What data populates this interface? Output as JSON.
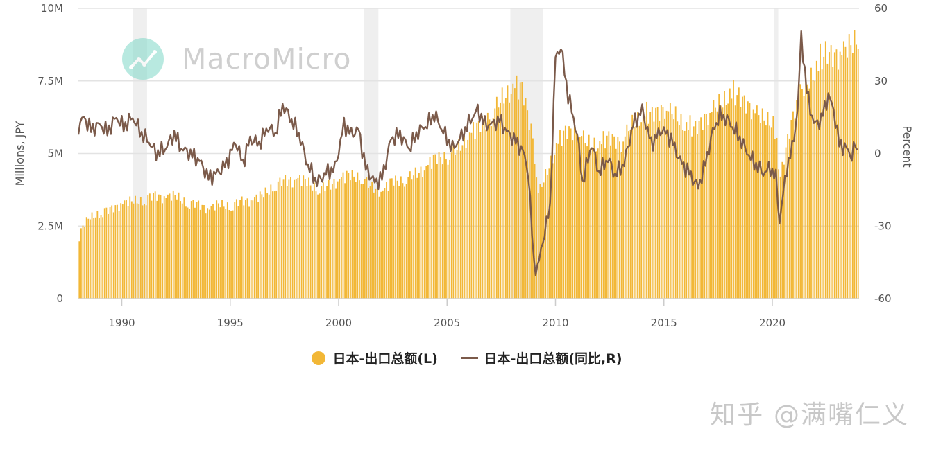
{
  "chart_data": {
    "type": "bar+line",
    "left_axis": {
      "label": "Millions, JPY",
      "ticks": [
        "0",
        "2.5M",
        "5M",
        "7.5M",
        "10M"
      ],
      "range": [
        0,
        10000000
      ]
    },
    "right_axis": {
      "label": "Percent",
      "ticks": [
        "-60",
        "-30",
        "0",
        "30",
        "60"
      ],
      "range": [
        -60,
        60
      ]
    },
    "x_axis": {
      "ticks": [
        "1990",
        "1995",
        "2000",
        "2005",
        "2010",
        "2015",
        "2020"
      ],
      "range": [
        "1988-01",
        "2024-01"
      ]
    },
    "recession_bands": [
      [
        "1990-07",
        "1991-03"
      ],
      [
        "2001-03",
        "2001-11"
      ],
      [
        "2007-12",
        "2009-06"
      ],
      [
        "2020-02",
        "2020-04"
      ]
    ],
    "series": [
      {
        "name": "日本-出口总额(L)",
        "type": "bar",
        "axis": "left",
        "color": "#F2B736",
        "points": [
          [
            "1988-01",
            2200000.0
          ],
          [
            "1988-06",
            2800000.0
          ],
          [
            "1989-01",
            2900000.0
          ],
          [
            "1989-06",
            3100000.0
          ],
          [
            "1990-01",
            3200000.0
          ],
          [
            "1990-06",
            3400000.0
          ],
          [
            "1991-01",
            3300000.0
          ],
          [
            "1991-06",
            3600000.0
          ],
          [
            "1992-01",
            3400000.0
          ],
          [
            "1992-06",
            3600000.0
          ],
          [
            "1993-01",
            3200000.0
          ],
          [
            "1993-06",
            3300000.0
          ],
          [
            "1994-01",
            3000000.0
          ],
          [
            "1994-06",
            3300000.0
          ],
          [
            "1995-01",
            3100000.0
          ],
          [
            "1995-06",
            3400000.0
          ],
          [
            "1996-01",
            3300000.0
          ],
          [
            "1996-06",
            3600000.0
          ],
          [
            "1997-01",
            3800000.0
          ],
          [
            "1997-06",
            4100000.0
          ],
          [
            "1998-01",
            4000000.0
          ],
          [
            "1998-06",
            4100000.0
          ],
          [
            "1999-01",
            3700000.0
          ],
          [
            "1999-06",
            3900000.0
          ],
          [
            "2000-01",
            4000000.0
          ],
          [
            "2000-06",
            4300000.0
          ],
          [
            "2001-01",
            4100000.0
          ],
          [
            "2001-06",
            3900000.0
          ],
          [
            "2002-01",
            3600000.0
          ],
          [
            "2002-06",
            4100000.0
          ],
          [
            "2003-01",
            4000000.0
          ],
          [
            "2003-06",
            4300000.0
          ],
          [
            "2004-01",
            4400000.0
          ],
          [
            "2004-06",
            4900000.0
          ],
          [
            "2005-01",
            4800000.0
          ],
          [
            "2005-06",
            5200000.0
          ],
          [
            "2006-01",
            5500000.0
          ],
          [
            "2006-06",
            6000000.0
          ],
          [
            "2007-01",
            6200000.0
          ],
          [
            "2007-06",
            6900000.0
          ],
          [
            "2008-01",
            7100000.0
          ],
          [
            "2008-06",
            7300000.0
          ],
          [
            "2008-12",
            5500000.0
          ],
          [
            "2009-03",
            3600000.0
          ],
          [
            "2009-06",
            4100000.0
          ],
          [
            "2009-12",
            5000000.0
          ],
          [
            "2010-06",
            5800000.0
          ],
          [
            "2011-01",
            5700000.0
          ],
          [
            "2011-06",
            5400000.0
          ],
          [
            "2012-01",
            5200000.0
          ],
          [
            "2012-06",
            5600000.0
          ],
          [
            "2013-01",
            5300000.0
          ],
          [
            "2013-06",
            6000000.0
          ],
          [
            "2014-01",
            6200000.0
          ],
          [
            "2014-06",
            6400000.0
          ],
          [
            "2015-01",
            6500000.0
          ],
          [
            "2015-06",
            6400000.0
          ],
          [
            "2016-01",
            5800000.0
          ],
          [
            "2016-06",
            5900000.0
          ],
          [
            "2017-01",
            6300000.0
          ],
          [
            "2017-06",
            6700000.0
          ],
          [
            "2018-01",
            6900000.0
          ],
          [
            "2018-06",
            7000000.0
          ],
          [
            "2019-01",
            6500000.0
          ],
          [
            "2019-06",
            6300000.0
          ],
          [
            "2020-01",
            6000000.0
          ],
          [
            "2020-05",
            4200000.0
          ],
          [
            "2020-10",
            5800000.0
          ],
          [
            "2021-03",
            7000000.0
          ],
          [
            "2021-06",
            7300000.0
          ],
          [
            "2022-01",
            7800000.0
          ],
          [
            "2022-06",
            8500000.0
          ],
          [
            "2023-01",
            8300000.0
          ],
          [
            "2023-06",
            8700000.0
          ],
          [
            "2023-12",
            8900000.0
          ]
        ]
      },
      {
        "name": "日本-出口总额(同比,R)",
        "type": "line",
        "axis": "right",
        "color": "#7B5A4A",
        "points": [
          [
            "1988-01",
            11
          ],
          [
            "1988-04",
            15
          ],
          [
            "1988-08",
            10
          ],
          [
            "1989-01",
            12
          ],
          [
            "1989-05",
            9
          ],
          [
            "1989-10",
            15
          ],
          [
            "1990-02",
            11
          ],
          [
            "1990-07",
            15
          ],
          [
            "1990-12",
            8
          ],
          [
            "1991-04",
            5
          ],
          [
            "1991-08",
            0
          ],
          [
            "1992-01",
            2
          ],
          [
            "1992-06",
            8
          ],
          [
            "1992-10",
            2
          ],
          [
            "1993-03",
            0
          ],
          [
            "1993-08",
            -3
          ],
          [
            "1994-01",
            -10
          ],
          [
            "1994-06",
            -8
          ],
          [
            "1994-11",
            -4
          ],
          [
            "1995-04",
            5
          ],
          [
            "1995-08",
            -4
          ],
          [
            "1995-12",
            6
          ],
          [
            "1996-05",
            4
          ],
          [
            "1996-10",
            11
          ],
          [
            "1997-02",
            8
          ],
          [
            "1997-06",
            20
          ],
          [
            "1997-10",
            15
          ],
          [
            "1998-03",
            8
          ],
          [
            "1998-08",
            -5
          ],
          [
            "1999-01",
            -12
          ],
          [
            "1999-06",
            -8
          ],
          [
            "1999-11",
            -6
          ],
          [
            "2000-04",
            12
          ],
          [
            "2000-08",
            8
          ],
          [
            "2000-12",
            10
          ],
          [
            "2001-04",
            -6
          ],
          [
            "2001-09",
            -12
          ],
          [
            "2002-01",
            -10
          ],
          [
            "2002-06",
            6
          ],
          [
            "2002-11",
            8
          ],
          [
            "2003-04",
            2
          ],
          [
            "2003-09",
            9
          ],
          [
            "2004-02",
            12
          ],
          [
            "2004-06",
            16
          ],
          [
            "2004-11",
            9
          ],
          [
            "2005-04",
            2
          ],
          [
            "2005-09",
            7
          ],
          [
            "2006-02",
            14
          ],
          [
            "2006-06",
            18
          ],
          [
            "2006-10",
            12
          ],
          [
            "2007-02",
            12
          ],
          [
            "2007-06",
            14
          ],
          [
            "2007-10",
            9
          ],
          [
            "2008-02",
            6
          ],
          [
            "2008-07",
            1
          ],
          [
            "2008-10",
            -8
          ],
          [
            "2009-01",
            -45
          ],
          [
            "2009-03",
            -48
          ],
          [
            "2009-06",
            -36
          ],
          [
            "2009-10",
            -22
          ],
          [
            "2010-01",
            40
          ],
          [
            "2010-04",
            44
          ],
          [
            "2010-08",
            24
          ],
          [
            "2011-01",
            8
          ],
          [
            "2011-04",
            -12
          ],
          [
            "2011-09",
            4
          ],
          [
            "2012-01",
            -8
          ],
          [
            "2012-06",
            -2
          ],
          [
            "2012-10",
            -9
          ],
          [
            "2013-03",
            -4
          ],
          [
            "2013-08",
            12
          ],
          [
            "2014-01",
            18
          ],
          [
            "2014-06",
            4
          ],
          [
            "2014-12",
            10
          ],
          [
            "2015-05",
            6
          ],
          [
            "2015-10",
            -3
          ],
          [
            "2016-03",
            -8
          ],
          [
            "2016-08",
            -14
          ],
          [
            "2016-12",
            -4
          ],
          [
            "2017-04",
            9
          ],
          [
            "2017-08",
            16
          ],
          [
            "2017-12",
            14
          ],
          [
            "2018-05",
            9
          ],
          [
            "2018-10",
            2
          ],
          [
            "2019-03",
            -4
          ],
          [
            "2019-08",
            -8
          ],
          [
            "2019-12",
            -6
          ],
          [
            "2020-03",
            -10
          ],
          [
            "2020-05",
            -28
          ],
          [
            "2020-09",
            -6
          ],
          [
            "2020-12",
            2
          ],
          [
            "2021-03",
            18
          ],
          [
            "2021-05",
            49
          ],
          [
            "2021-08",
            26
          ],
          [
            "2021-12",
            12
          ],
          [
            "2022-04",
            14
          ],
          [
            "2022-08",
            24
          ],
          [
            "2022-11",
            18
          ],
          [
            "2023-02",
            4
          ],
          [
            "2023-06",
            2
          ],
          [
            "2023-09",
            -1
          ],
          [
            "2023-11",
            4
          ],
          [
            "2023-12",
            0
          ]
        ]
      }
    ]
  },
  "watermark": {
    "text": "MacroMicro",
    "icon": "chart-logo-icon"
  },
  "footer_watermark": "知乎 @满嘴仁义"
}
